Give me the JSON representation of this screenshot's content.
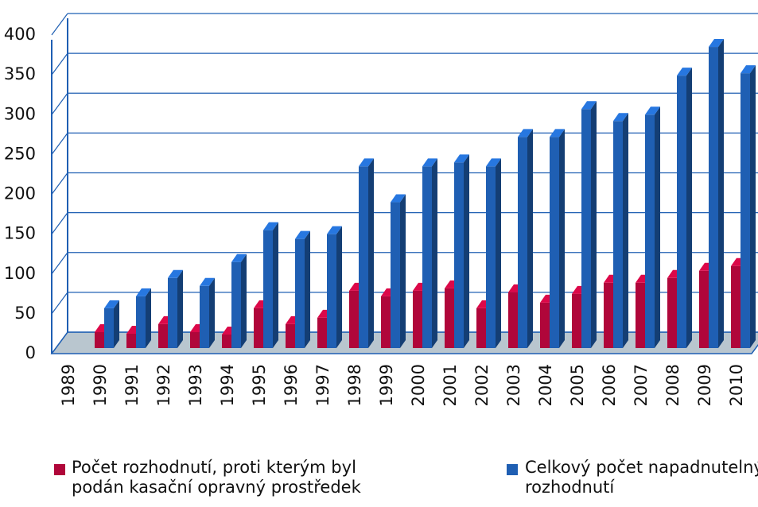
{
  "chart_data": {
    "type": "bar3d",
    "categories": [
      "1989",
      "1990",
      "1991",
      "1992",
      "1993",
      "1994",
      "1995",
      "1996",
      "1997",
      "1998",
      "1999",
      "2000",
      "2001",
      "2002",
      "2003",
      "2004",
      "2005",
      "2006",
      "2007",
      "2008",
      "2009",
      "2010"
    ],
    "series": [
      {
        "name": "Počet rozhodnutí, proti kterým byl podán kasační opravný prostředek",
        "color": "#b0063a",
        "values": [
          null,
          20,
          18,
          30,
          20,
          17,
          50,
          30,
          38,
          72,
          65,
          72,
          75,
          50,
          70,
          57,
          68,
          82,
          82,
          88,
          97,
          103
        ]
      },
      {
        "name": "Celkový počet napadnutelných rozhodnutí",
        "color": "#1f5fb3",
        "values": [
          null,
          50,
          65,
          88,
          78,
          108,
          148,
          137,
          143,
          228,
          183,
          228,
          233,
          228,
          265,
          265,
          300,
          285,
          293,
          342,
          378,
          345
        ]
      }
    ],
    "ylim": [
      0,
      400
    ],
    "yticks": [
      0,
      50,
      100,
      150,
      200,
      250,
      300,
      350,
      400
    ],
    "grid": true
  }
}
